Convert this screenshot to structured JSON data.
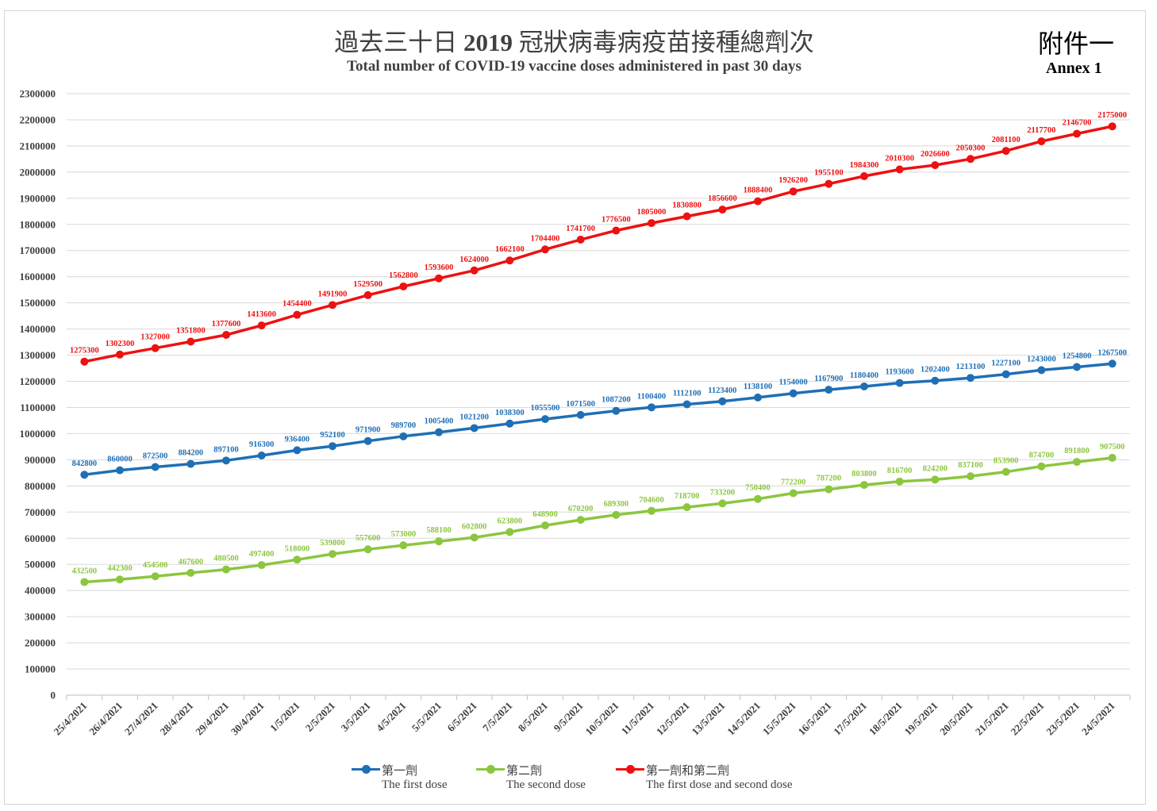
{
  "header": {
    "title_zh_pre": "過去三十日",
    "title_zh_year": "2019",
    "title_zh_post": "冠狀病毒病疫苗接種總劑次",
    "title_en": "Total number of COVID-19 vaccine doses administered in past 30 days",
    "annex_zh": "附件一",
    "annex_en": "Annex 1"
  },
  "colors": {
    "first": "#1f6fb5",
    "second": "#8cc63f",
    "total": "#ee1111",
    "grid": "#d9d9d9",
    "axis_text": "#404040"
  },
  "legend": [
    {
      "zh": "第一劑",
      "en": "The first dose"
    },
    {
      "zh": "第二劑",
      "en": "The second dose"
    },
    {
      "zh": "第一劑和第二劑",
      "en": "The first dose and second dose"
    }
  ],
  "chart_data": {
    "type": "line",
    "title": "過去三十日 2019 冠狀病毒病疫苗接種總劑次",
    "subtitle": "Total number of COVID-19 vaccine doses administered in past 30 days",
    "ylim": [
      0,
      2300000
    ],
    "ytick_step": 100000,
    "grid": true,
    "legend_position": "bottom",
    "x": [
      "25/4/2021",
      "26/4/2021",
      "27/4/2021",
      "28/4/2021",
      "29/4/2021",
      "30/4/2021",
      "1/5/2021",
      "2/5/2021",
      "3/5/2021",
      "4/5/2021",
      "5/5/2021",
      "6/5/2021",
      "7/5/2021",
      "8/5/2021",
      "9/5/2021",
      "10/5/2021",
      "11/5/2021",
      "12/5/2021",
      "13/5/2021",
      "14/5/2021",
      "15/5/2021",
      "16/5/2021",
      "17/5/2021",
      "18/5/2021",
      "19/5/2021",
      "20/5/2021",
      "21/5/2021",
      "22/5/2021",
      "23/5/2021",
      "24/5/2021"
    ],
    "series": [
      {
        "name": "第一劑 The first dose",
        "color": "#1f6fb5",
        "values": [
          842800,
          860000,
          872500,
          884200,
          897100,
          916300,
          936400,
          952100,
          971900,
          989700,
          1005400,
          1021200,
          1038300,
          1055500,
          1071500,
          1087200,
          1100400,
          1112100,
          1123400,
          1138100,
          1154000,
          1167900,
          1180400,
          1193600,
          1202400,
          1213100,
          1227100,
          1243000,
          1254800,
          1267500
        ]
      },
      {
        "name": "第二劑 The second dose",
        "color": "#8cc63f",
        "values": [
          432500,
          442300,
          454500,
          467600,
          480500,
          497400,
          518000,
          539800,
          557600,
          573000,
          588100,
          602800,
          623800,
          648900,
          670200,
          689300,
          704600,
          718700,
          733200,
          750400,
          772200,
          787200,
          803800,
          816700,
          824200,
          837100,
          853900,
          874700,
          891800,
          907500
        ]
      },
      {
        "name": "第一劑和第二劑 The first dose and second dose",
        "color": "#ee1111",
        "values": [
          1275300,
          1302300,
          1327000,
          1351800,
          1377600,
          1413600,
          1454400,
          1491900,
          1529500,
          1562800,
          1593600,
          1624000,
          1662100,
          1704400,
          1741700,
          1776500,
          1805000,
          1830800,
          1856600,
          1888400,
          1926200,
          1955100,
          1984300,
          2010300,
          2026600,
          2050300,
          2081100,
          2117700,
          2146700,
          2175000
        ]
      }
    ]
  }
}
